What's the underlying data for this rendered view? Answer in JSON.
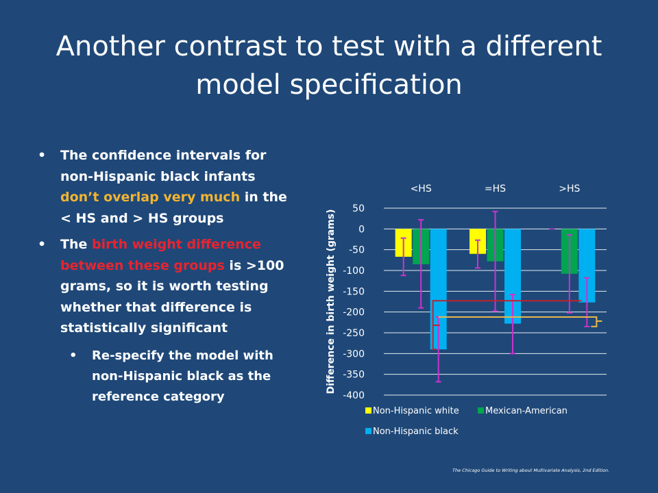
{
  "title": {
    "line1": "Another contrast to test with a different",
    "line2": "model specification"
  },
  "bullets": {
    "b1": {
      "pre": "The confidence intervals for non-Hispanic black infants ",
      "hl": "don’t overlap very much",
      "post": " in the < HS and > HS groups"
    },
    "b2": {
      "pre": "The ",
      "hl": "birth weight difference between these groups",
      "post": " is >100 grams, so it is worth testing whether that difference is statistically significant"
    },
    "sub1": "Re-specify the model with non-Hispanic black as the reference category"
  },
  "bullet_glyph": "•",
  "credit": "The Chicago Guide to Writing about Multivariate Analysis, 2nd Edition.",
  "colors": {
    "background": "#1f4878",
    "highlight_yellow": "#f2b431",
    "highlight_red": "#e8242f",
    "series": [
      "#ffff00",
      "#00a550",
      "#00b0f0"
    ],
    "error_bar": "#cc33cc",
    "bracket_red": "#c0232d",
    "bracket_yellow": "#e8b84a"
  },
  "chart_data": {
    "type": "bar",
    "categories": [
      "<HS",
      "=HS",
      ">HS"
    ],
    "series": [
      {
        "name": "Non-Hispanic white",
        "values": [
          -67,
          -60,
          0
        ],
        "ci_low": [
          -112,
          -94,
          0
        ],
        "ci_high": [
          -22,
          -27,
          0
        ]
      },
      {
        "name": "Mexican-American",
        "values": [
          -85,
          -78,
          -108
        ],
        "ci_low": [
          -190,
          -198,
          -202
        ],
        "ci_high": [
          22,
          42,
          -14
        ]
      },
      {
        "name": "Non-Hispanic black",
        "values": [
          -290,
          -228,
          -177
        ],
        "ci_low": [
          -368,
          -300,
          -235
        ],
        "ci_high": [
          -212,
          -158,
          -118
        ]
      }
    ],
    "ylabel": "Difference in birth weight (grams)",
    "xlabel": "",
    "ylim": [
      -400,
      50
    ],
    "yticks": [
      50,
      0,
      -50,
      -100,
      -150,
      -200,
      -250,
      -300,
      -350,
      -400
    ],
    "grid": true,
    "legend": "bottom",
    "annotations": [
      {
        "type": "bracket",
        "color": "red",
        "y": -173,
        "from": "<HS",
        "to": ">HS"
      },
      {
        "type": "bracket",
        "color": "yellow",
        "y": -212,
        "from": "<HS",
        "to": ">HS"
      }
    ]
  }
}
